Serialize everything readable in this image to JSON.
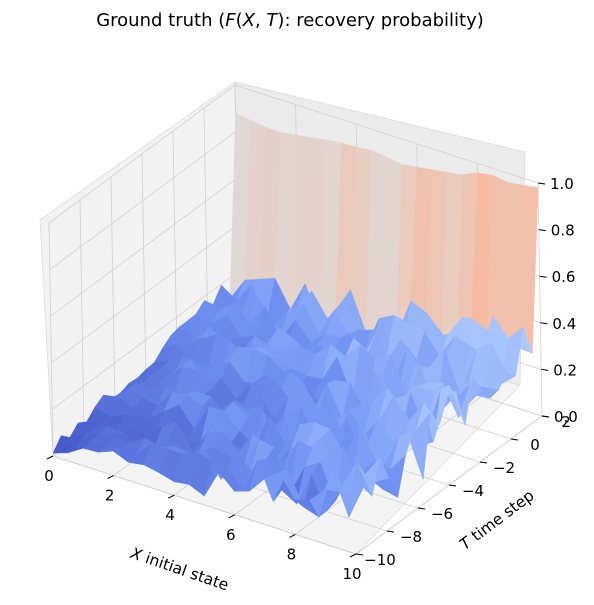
{
  "chart_data": {
    "type": "surface3d",
    "title": "Ground truth (F(X, T): recovery probability)",
    "xlabel": "X initial state",
    "ylabel": "T time step",
    "zlabel": "",
    "xlim": [
      0,
      10
    ],
    "ylim": [
      -10,
      2
    ],
    "zlim": [
      0,
      1
    ],
    "xticks": [
      0,
      2,
      4,
      6,
      8,
      10
    ],
    "yticks": [
      -10,
      -8,
      -6,
      -4,
      -2,
      0,
      2
    ],
    "zticks": [
      "0.0",
      "0.2",
      "0.4",
      "0.6",
      "0.8",
      "1.0"
    ],
    "colormap": "coolwarm",
    "colormap_colors": [
      "#3b4cc0",
      "#7093f3",
      "#aac7fd",
      "#dddcdc",
      "#f7b89c",
      "#e7745b",
      "#b40426"
    ],
    "grid": true,
    "surface": {
      "x_range": [
        0,
        10
      ],
      "y_range": [
        -10,
        2
      ],
      "description": "Low noisy surface (~0.0-0.35) for T < 2; step rising to ~0.9-1.0 at T = 2 along all X",
      "back_wall_values": [
        0.88,
        0.87,
        0.86,
        0.86,
        0.87,
        0.88,
        0.89,
        0.9,
        0.9,
        0.91,
        0.9,
        0.89,
        0.9,
        0.91,
        0.92,
        0.93,
        0.96,
        0.97,
        0.96,
        0.97,
        0.98
      ]
    }
  }
}
